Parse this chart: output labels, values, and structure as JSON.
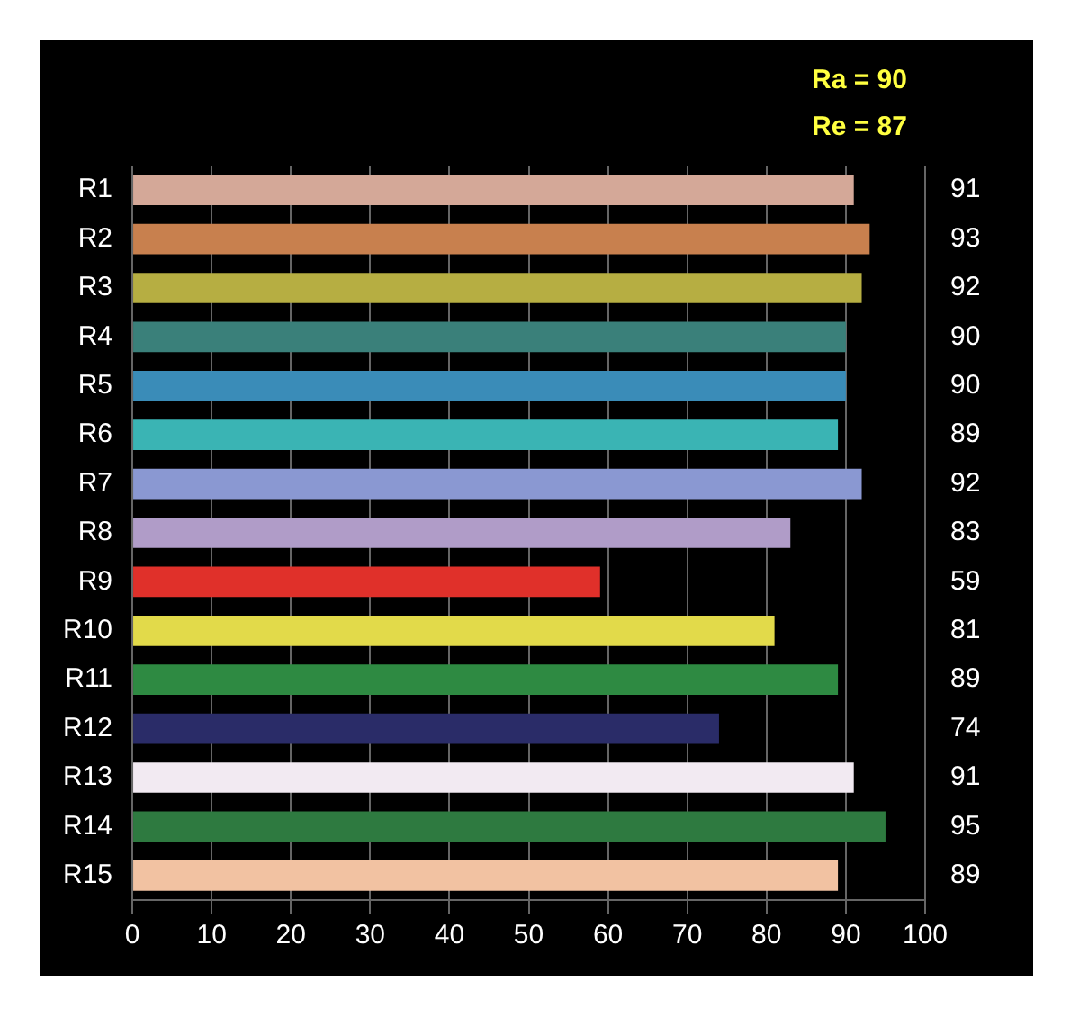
{
  "chart_data": {
    "type": "bar",
    "orientation": "horizontal",
    "categories": [
      "R1",
      "R2",
      "R3",
      "R4",
      "R5",
      "R6",
      "R7",
      "R8",
      "R9",
      "R10",
      "R11",
      "R12",
      "R13",
      "R14",
      "R15"
    ],
    "values": [
      91,
      93,
      92,
      90,
      90,
      89,
      92,
      83,
      59,
      81,
      89,
      74,
      91,
      95,
      89
    ],
    "colors": [
      "#d4a898",
      "#c8804e",
      "#b6ae42",
      "#3a807a",
      "#3a8cb8",
      "#3ab4b4",
      "#8a98d2",
      "#b09cc8",
      "#e0302a",
      "#e2da4a",
      "#2e8a42",
      "#2a2c68",
      "#f2eaf2",
      "#2e7a40",
      "#f2c2a2"
    ],
    "xlim": [
      0,
      100
    ],
    "xticks": [
      0,
      10,
      20,
      30,
      40,
      50,
      60,
      70,
      80,
      90,
      100
    ],
    "grid": "x",
    "data_labels": true,
    "legend": false,
    "annotations": [
      "Ra = 90",
      "Re = 87"
    ]
  }
}
